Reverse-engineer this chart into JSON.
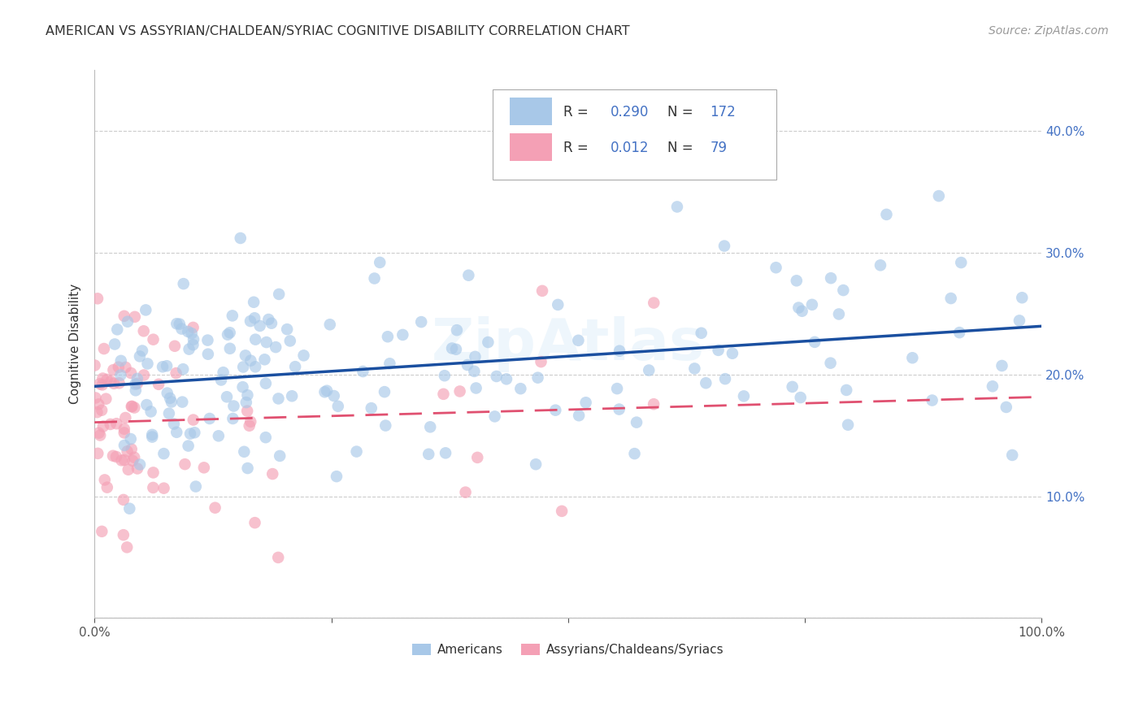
{
  "title": "AMERICAN VS ASSYRIAN/CHALDEAN/SYRIAC COGNITIVE DISABILITY CORRELATION CHART",
  "source": "Source: ZipAtlas.com",
  "ylabel": "Cognitive Disability",
  "xlim": [
    0.0,
    1.0
  ],
  "ylim": [
    0.0,
    0.45
  ],
  "blue_R": 0.29,
  "blue_N": 172,
  "pink_R": 0.012,
  "pink_N": 79,
  "blue_color": "#a8c8e8",
  "pink_color": "#f4a0b5",
  "blue_line_color": "#1a4fa0",
  "pink_line_color": "#e05070",
  "background_color": "#ffffff",
  "grid_color": "#cccccc",
  "tick_label_color": "#4472c4",
  "title_color": "#333333",
  "source_color": "#999999"
}
